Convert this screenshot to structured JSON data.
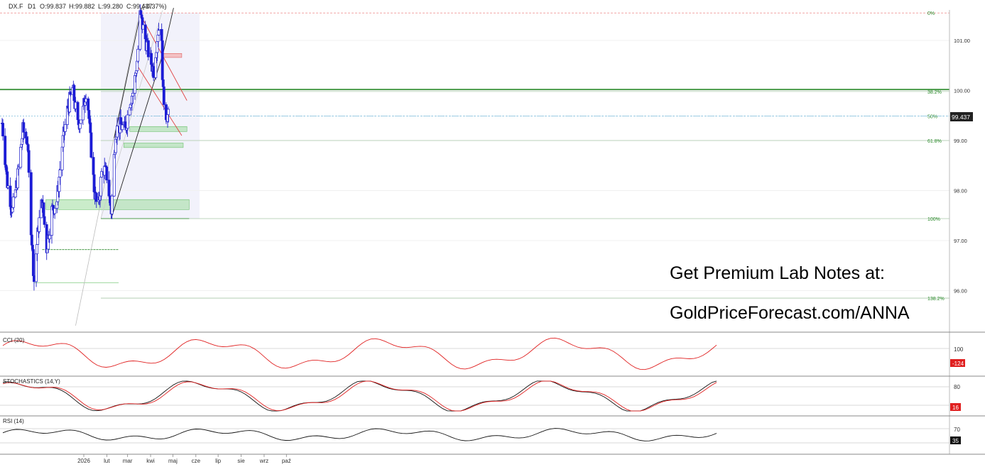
{
  "header": {
    "symbol": "DX.F",
    "timeframe": "D1",
    "open": "O:99.837",
    "high": "H:99.882",
    "low": "L:99.280",
    "close": "C:99.437",
    "change": "(-0.37%)"
  },
  "promo": {
    "line1": "Get Premium Lab Notes at:",
    "line2": "GoldPriceForecast.com/ANNA"
  },
  "colors": {
    "bull_candle": "#2222cc",
    "bear_candle": "#1a1ad9",
    "support_zone": "#9fdc9f",
    "resistance_zone": "#f4a0a0",
    "level_line": "#2a8a2a",
    "cci_line": "#e02020",
    "stoch_k": "#111111",
    "stoch_d": "#e02020",
    "rsi_line": "#111111"
  },
  "chart_data": {
    "type": "candlestick",
    "ylim": [
      95.3,
      102.1
    ],
    "y_ticks": [
      "101.00",
      "100.00",
      "99.00",
      "98.00",
      "97.00",
      "96.00"
    ],
    "x_ticks": [
      "2026",
      "lut",
      "mar",
      "kwi",
      "maj",
      "cze",
      "lip",
      "sie",
      "wrz",
      "paź"
    ],
    "last_price": "99.437",
    "fib_levels": [
      {
        "label": "0%",
        "value": 101.55
      },
      {
        "label": "38.2%",
        "value": 99.98
      },
      {
        "label": "50%",
        "value": 99.49
      },
      {
        "label": "61.8%",
        "value": 99.0
      },
      {
        "label": "100%",
        "value": 97.44
      },
      {
        "label": "138.2%",
        "value": 95.85
      }
    ],
    "horizontal_line": 100.02,
    "anchor_closes": [
      {
        "date": "Jan 1",
        "close": 99.35
      },
      {
        "date": "Jan 8",
        "close": 98.15
      },
      {
        "date": "Jan 15",
        "close": 97.6
      },
      {
        "date": "Jan 22",
        "close": 98.3
      },
      {
        "date": "Jan 29",
        "close": 99.2
      },
      {
        "date": "Feb 4",
        "close": 99.0
      },
      {
        "date": "Feb 8",
        "close": 97.55
      },
      {
        "date": "Feb 13",
        "close": 96.2
      },
      {
        "date": "Feb 19",
        "close": 97.3
      },
      {
        "date": "Feb 24",
        "close": 97.8
      },
      {
        "date": "Mar 2",
        "close": 96.85
      },
      {
        "date": "Mar 9",
        "close": 97.6
      },
      {
        "date": "Mar 16",
        "close": 97.8
      },
      {
        "date": "Mar 23",
        "close": 98.9
      },
      {
        "date": "Mar 30",
        "close": 99.6
      },
      {
        "date": "Apr 6",
        "close": 100.05
      },
      {
        "date": "Apr 13",
        "close": 99.3
      },
      {
        "date": "Apr 20",
        "close": 99.6
      },
      {
        "date": "Apr 25",
        "close": 100.1
      },
      {
        "date": "Apr 30",
        "close": 99.0
      },
      {
        "date": "May 5",
        "close": 98.05
      },
      {
        "date": "May 10",
        "close": 97.55
      },
      {
        "date": "May 16",
        "close": 98.5
      },
      {
        "date": "May 22",
        "close": 98.3
      },
      {
        "date": "May 28",
        "close": 97.6
      },
      {
        "date": "Jun 3",
        "close": 99.2
      },
      {
        "date": "Jun 10",
        "close": 99.3
      },
      {
        "date": "Jun 16",
        "close": 99.2
      },
      {
        "date": "Jun 22",
        "close": 99.8
      },
      {
        "date": "Jun 27",
        "close": 100.0
      },
      {
        "date": "Jul 2",
        "close": 100.6
      },
      {
        "date": "Jul 6",
        "close": 101.5
      },
      {
        "date": "Jul 12",
        "close": 101.1
      },
      {
        "date": "Jul 18",
        "close": 100.7
      },
      {
        "date": "Jul 24",
        "close": 100.4
      },
      {
        "date": "Jul 30",
        "close": 101.2
      },
      {
        "date": "Aug 3",
        "close": 101.35
      },
      {
        "date": "Aug 6",
        "close": 99.9
      },
      {
        "date": "Aug 10",
        "close": 99.55
      },
      {
        "date": "Aug 14",
        "close": 99.44
      }
    ],
    "support_zones": [
      {
        "from": "Mar 1",
        "to": "Sep 10",
        "low": 97.62,
        "high": 97.82
      },
      {
        "from": "Jun 14",
        "to": "Sep 2",
        "low": 98.86,
        "high": 98.95
      },
      {
        "from": "Jun 22",
        "to": "Sep 7",
        "low": 99.18,
        "high": 99.28
      }
    ],
    "resistance_zone": {
      "from": "Aug 4",
      "to": "Aug 31",
      "low": 100.66,
      "high": 100.74
    },
    "cci": {
      "title": "CCI (20)",
      "label_100": "100",
      "last_value": "-124"
    },
    "stochastics": {
      "title": "STOCHASTICS (14,Y)",
      "label_80": "80",
      "last_value": "16"
    },
    "rsi": {
      "title": "RSI (14)",
      "label_70": "70",
      "last_value": "35"
    }
  }
}
